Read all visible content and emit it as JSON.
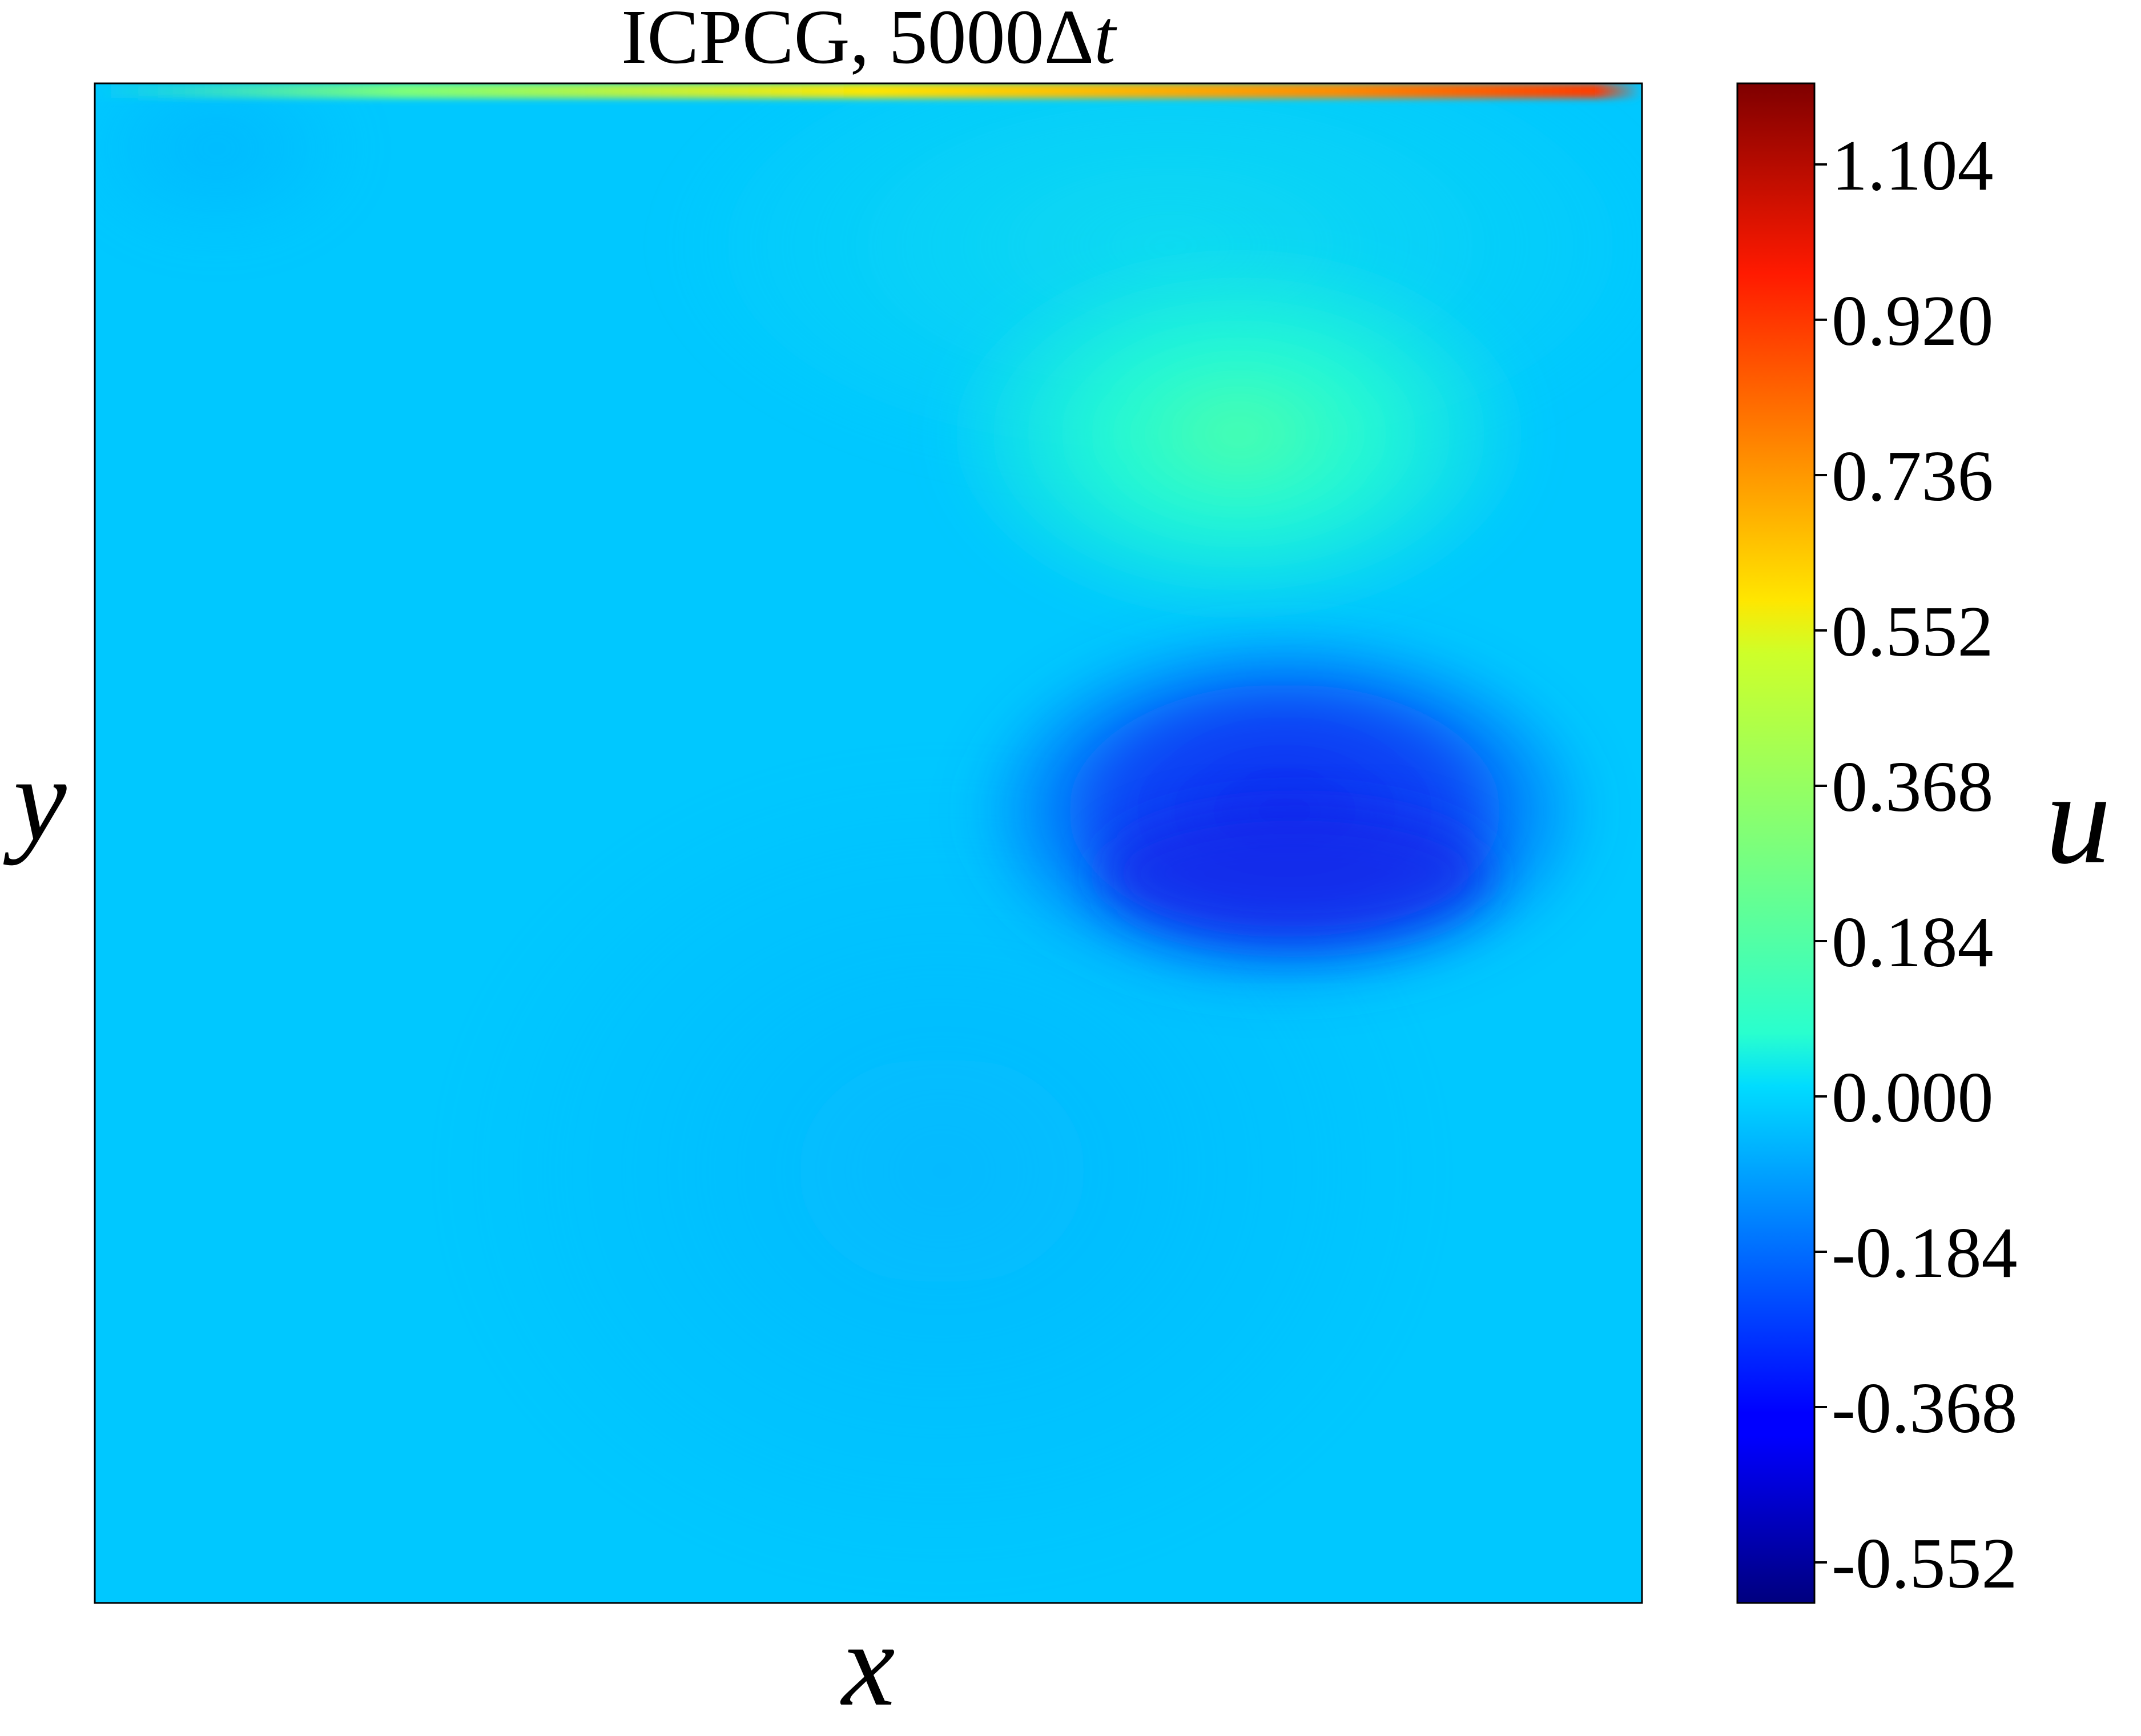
{
  "chart_data": {
    "type": "heatmap",
    "title_main": "ICPCG, 5000Δ",
    "title_var": "t",
    "xlabel": "x",
    "ylabel": "y",
    "colorbar": {
      "label": "u",
      "range": [
        -0.6,
        1.2
      ],
      "ticks": [
        -0.552,
        -0.368,
        -0.184,
        0.0,
        0.184,
        0.368,
        0.552,
        0.736,
        0.92,
        1.104
      ],
      "tick_labels": [
        "-0.552",
        "-0.368",
        "-0.184",
        "0.000",
        "0.184",
        "0.368",
        "0.552",
        "0.736",
        "0.920",
        "1.104"
      ],
      "colormap": "jet"
    },
    "field_description_values": {
      "background_value": 0.0,
      "lid_max_value": 1.0,
      "positive_blob": {
        "center": [
          0.74,
          0.77
        ],
        "peak_value": 0.28
      },
      "negative_blob": {
        "center": [
          0.77,
          0.47
        ],
        "peak_value": -0.33
      },
      "weak_negative_region_value": -0.06
    },
    "domain": {
      "x": [
        0,
        1
      ],
      "y": [
        0,
        1
      ]
    },
    "grid": false
  }
}
